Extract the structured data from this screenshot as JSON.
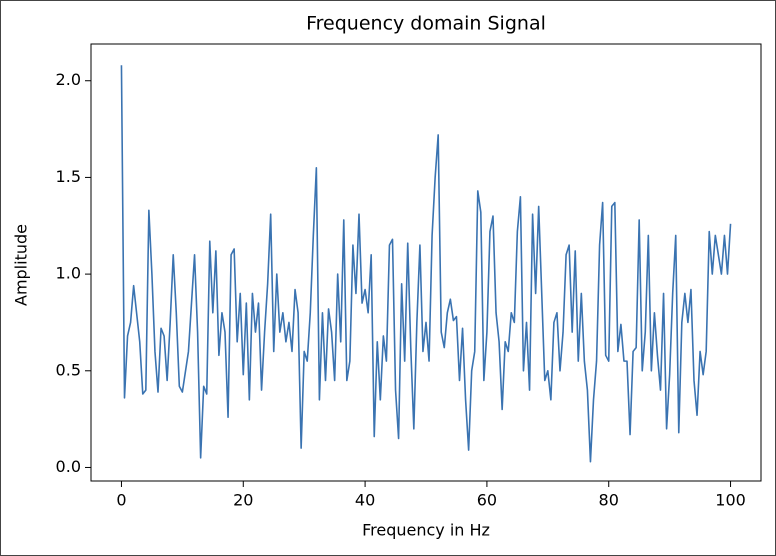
{
  "chart_data": {
    "type": "line",
    "title": "Frequency domain Signal",
    "x_label": "Frequency in Hz",
    "y_label": "Amplitude",
    "color": "#3a73b1",
    "x": [
      0,
      0.5,
      1,
      1.5,
      2,
      3,
      3.5,
      4,
      4.5,
      5,
      5.5,
      6,
      6.5,
      7,
      7.5,
      8,
      8.5,
      9,
      9.5,
      10,
      11,
      12,
      12.5,
      13,
      13.5,
      14,
      14.5,
      15,
      15.5,
      16,
      16.5,
      17,
      17.5,
      18,
      18.5,
      19,
      19.5,
      20,
      20.5,
      21,
      21.5,
      22,
      22.5,
      23,
      23.5,
      24,
      24.5,
      25,
      25.5,
      26,
      26.5,
      27,
      27.5,
      28,
      28.5,
      29,
      29.5,
      30,
      30.5,
      31,
      31.5,
      32,
      32.5,
      33,
      33.5,
      34,
      34.5,
      35,
      35.5,
      36,
      36.5,
      37,
      37.5,
      38,
      38.5,
      39,
      39.5,
      40,
      40.5,
      41,
      41.5,
      42,
      42.5,
      43,
      43.5,
      44,
      44.5,
      45,
      45.5,
      46,
      46.5,
      47,
      47.5,
      48,
      48.5,
      49,
      49.5,
      50,
      50.5,
      51,
      51.5,
      52,
      52.5,
      53,
      53.5,
      54,
      54.5,
      55,
      55.5,
      56,
      56.5,
      57,
      57.5,
      58,
      58.5,
      59,
      59.5,
      60,
      60.5,
      61,
      61.5,
      62,
      62.5,
      63,
      63.5,
      64,
      64.5,
      65,
      65.5,
      66,
      66.5,
      67,
      67.5,
      68,
      68.5,
      69,
      69.5,
      70,
      70.5,
      71,
      71.5,
      72,
      72.5,
      73,
      73.5,
      74,
      74.5,
      75,
      75.5,
      76,
      76.5,
      77,
      77.5,
      78,
      78.5,
      79,
      79.5,
      80,
      80.5,
      81,
      81.5,
      82,
      82.5,
      83,
      83.5,
      84,
      84.5,
      85,
      85.5,
      86,
      86.5,
      87,
      87.5,
      88,
      88.5,
      89,
      89.5,
      90,
      90.5,
      91,
      91.5,
      92,
      92.5,
      93,
      93.5,
      94,
      94.5,
      95,
      95.5,
      96,
      96.5,
      97,
      97.5,
      98,
      98.5,
      99,
      99.5,
      100
    ],
    "values": [
      2.08,
      0.36,
      0.68,
      0.75,
      0.94,
      0.65,
      0.38,
      0.4,
      1.33,
      1.0,
      0.6,
      0.39,
      0.72,
      0.68,
      0.45,
      0.75,
      1.1,
      0.8,
      0.42,
      0.39,
      0.6,
      1.1,
      0.7,
      0.05,
      0.42,
      0.38,
      1.17,
      0.8,
      1.12,
      0.58,
      0.8,
      0.7,
      0.26,
      1.1,
      1.13,
      0.65,
      0.9,
      0.48,
      0.85,
      0.35,
      0.9,
      0.7,
      0.85,
      0.4,
      0.7,
      0.95,
      1.31,
      0.6,
      1.0,
      0.7,
      0.8,
      0.65,
      0.75,
      0.6,
      0.92,
      0.8,
      0.1,
      0.6,
      0.55,
      0.8,
      1.2,
      1.55,
      0.35,
      0.8,
      0.45,
      0.82,
      0.7,
      0.45,
      1.0,
      0.65,
      1.28,
      0.45,
      0.55,
      1.15,
      0.9,
      1.31,
      0.85,
      0.92,
      0.8,
      1.1,
      0.16,
      0.65,
      0.35,
      0.68,
      0.55,
      1.15,
      1.18,
      0.4,
      0.15,
      0.95,
      0.55,
      1.16,
      0.62,
      0.2,
      0.75,
      1.15,
      0.6,
      0.75,
      0.55,
      1.2,
      1.5,
      1.72,
      0.7,
      0.62,
      0.8,
      0.87,
      0.76,
      0.78,
      0.45,
      0.72,
      0.35,
      0.09,
      0.5,
      0.6,
      1.43,
      1.32,
      0.45,
      0.7,
      1.22,
      1.3,
      0.8,
      0.65,
      0.3,
      0.65,
      0.6,
      0.8,
      0.75,
      1.22,
      1.4,
      0.5,
      0.75,
      0.4,
      1.31,
      0.9,
      1.35,
      0.9,
      0.45,
      0.5,
      0.35,
      0.75,
      0.8,
      0.5,
      0.7,
      1.1,
      1.15,
      0.7,
      1.12,
      0.55,
      0.9,
      0.55,
      0.4,
      0.03,
      0.35,
      0.55,
      1.15,
      1.37,
      0.58,
      0.55,
      1.35,
      1.37,
      0.6,
      0.74,
      0.55,
      0.55,
      0.17,
      0.6,
      0.62,
      1.28,
      0.5,
      0.7,
      1.2,
      0.5,
      0.8,
      0.58,
      0.4,
      0.9,
      0.2,
      0.48,
      0.9,
      1.2,
      0.18,
      0.75,
      0.9,
      0.75,
      0.92,
      0.45,
      0.27,
      0.6,
      0.48,
      0.6,
      1.22,
      1.0,
      1.2,
      1.1,
      1.0,
      1.2,
      1.0,
      1.26
    ],
    "xlim": [
      -5,
      105
    ],
    "ylim": [
      -0.07,
      2.19
    ],
    "xticks": [
      0,
      20,
      40,
      60,
      80,
      100
    ],
    "yticks": [
      {
        "value": 0,
        "label": "0.0"
      },
      0.5,
      {
        "value": 1,
        "label": "1.0"
      },
      1.5,
      {
        "value": 2,
        "label": "2.0"
      }
    ]
  }
}
